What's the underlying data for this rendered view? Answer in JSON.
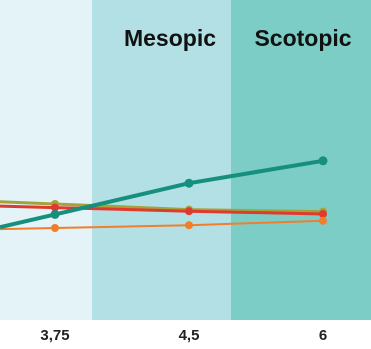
{
  "chart_data": {
    "type": "line",
    "x": [
      "3,75",
      "4,5",
      "6"
    ],
    "bands": [
      {
        "label": "",
        "color": "#e3f3f7"
      },
      {
        "label": "Mesopic",
        "color": "#b2e0e4"
      },
      {
        "label": "Scotopic",
        "color": "#7ccdc6"
      }
    ],
    "series": [
      {
        "color": "#a3a33a",
        "values": [
          0.51,
          0.524,
          0.529
        ]
      },
      {
        "color": "#e03a2f",
        "values": [
          0.519,
          0.528,
          0.535
        ]
      },
      {
        "color": "#f07e2b",
        "values": [
          0.57,
          0.563,
          0.552
        ],
        "width": 2
      },
      {
        "color": "#168f7f",
        "values": [
          0.536,
          0.458,
          0.402
        ],
        "width": 4
      }
    ],
    "ylim": [
      0.8,
      0.0
    ],
    "grid": false
  }
}
